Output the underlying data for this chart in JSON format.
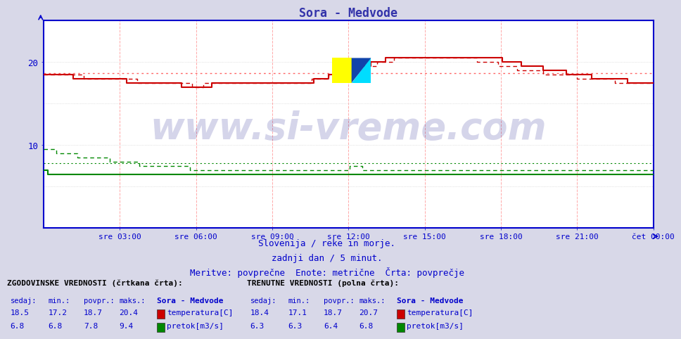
{
  "title": "Sora - Medvode",
  "title_color": "#3333aa",
  "title_fontsize": 12,
  "bg_color": "#d8d8e8",
  "plot_bg_color": "#ffffff",
  "border_color": "#0000cc",
  "xlabel_color": "#0000cc",
  "ylabel_color": "#0000cc",
  "watermark": "www.si-vreme.com",
  "watermark_color": "#1a1a8c",
  "subtitle_lines": [
    "Slovenija / reke in morje.",
    "zadnji dan / 5 minut.",
    "Meritve: povprečne  Enote: metrične  Črta: povprečje"
  ],
  "x_tick_labels": [
    "sre 03:00",
    "sre 06:00",
    "sre 09:00",
    "sre 12:00",
    "sre 15:00",
    "sre 18:00",
    "sre 21:00",
    "čet 00:00"
  ],
  "n_points": 288,
  "temp_avg_hist": 18.7,
  "temp_avg_curr": 18.7,
  "temp_min_hist": 17.2,
  "temp_max_hist": 20.4,
  "temp_min_curr": 17.1,
  "temp_max_curr": 20.7,
  "temp_sedaj_hist": 18.5,
  "temp_sedaj_curr": 18.4,
  "flow_avg_hist": 7.8,
  "flow_avg_curr": 6.4,
  "flow_min_hist": 6.8,
  "flow_max_hist": 9.4,
  "flow_min_curr": 6.3,
  "flow_max_curr": 6.8,
  "flow_sedaj_hist": 6.8,
  "flow_sedaj_curr": 6.3,
  "temp_color": "#cc0000",
  "flow_color": "#008800",
  "avg_line_color": "#ff6666",
  "grid_v_color": "#ffaaaa",
  "grid_h_color": "#cccccc",
  "legend_title_hist": "ZGODOVINSKE VREDNOSTI (črtkana črta):",
  "legend_title_curr": "TRENUTNE VREDNOSTI (polna črta):",
  "legend_header": [
    "sedaj:",
    "min.:",
    "povpr.:",
    "maks.:",
    "Sora - Medvode"
  ],
  "legend_color": "#0000cc",
  "ylim_min": 0,
  "ylim_max": 25
}
